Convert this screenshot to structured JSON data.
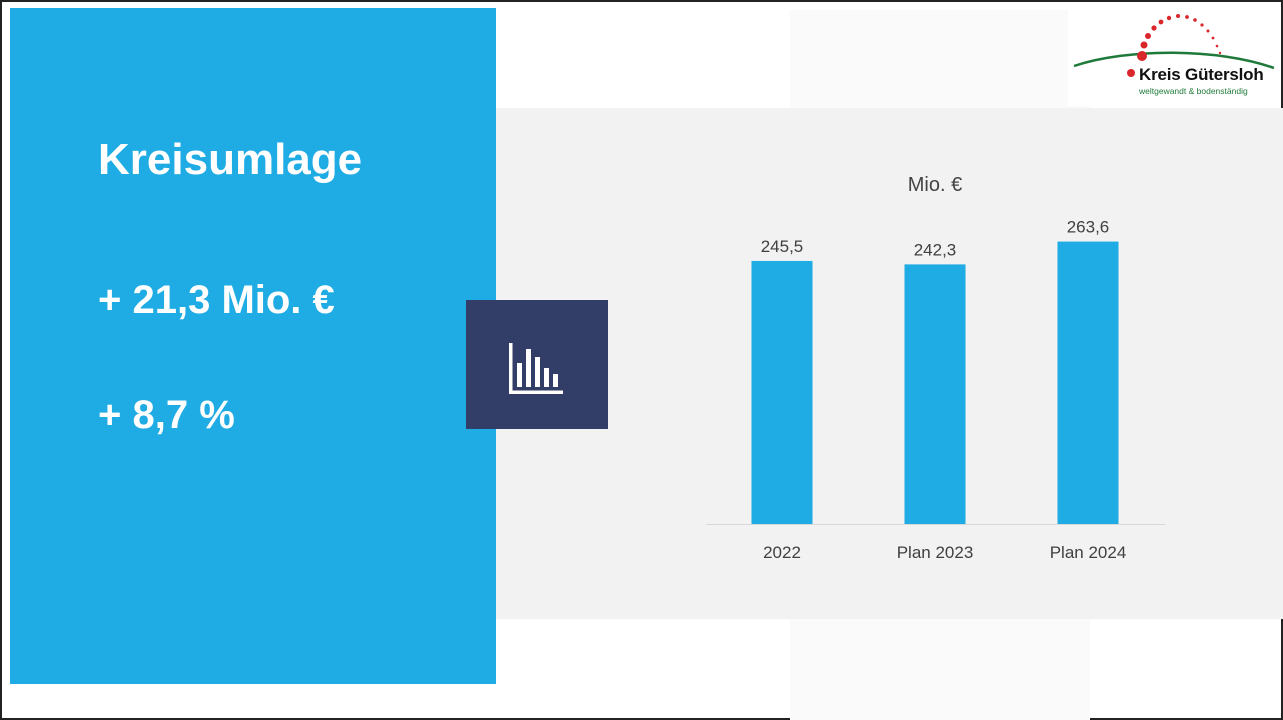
{
  "left_panel": {
    "title": "Kreisumlage",
    "change_absolute": "+ 21,3 Mio. €",
    "change_percent": "+ 8,7 %"
  },
  "logo": {
    "name": "Kreis Gütersloh",
    "tagline": "weltgewandt & bodenständig"
  },
  "icons": {
    "chart_icon": "bar-chart-icon"
  },
  "colors": {
    "accent_blue": "#1fabe3",
    "icon_box": "#333e68",
    "chart_bg": "#f2f2f2",
    "logo_green": "#1f7a3a",
    "logo_red": "#d9262b"
  },
  "chart_data": {
    "type": "bar",
    "title": "Mio. €",
    "categories": [
      "2022",
      "Plan 2023",
      "Plan 2024"
    ],
    "values": [
      245.5,
      242.3,
      263.6
    ],
    "data_labels": [
      "245,5",
      "242,3",
      "263,6"
    ],
    "xlabel": "",
    "ylabel": "",
    "ylim": [
      0,
      280
    ],
    "grid": false,
    "color": "#1fabe3"
  }
}
